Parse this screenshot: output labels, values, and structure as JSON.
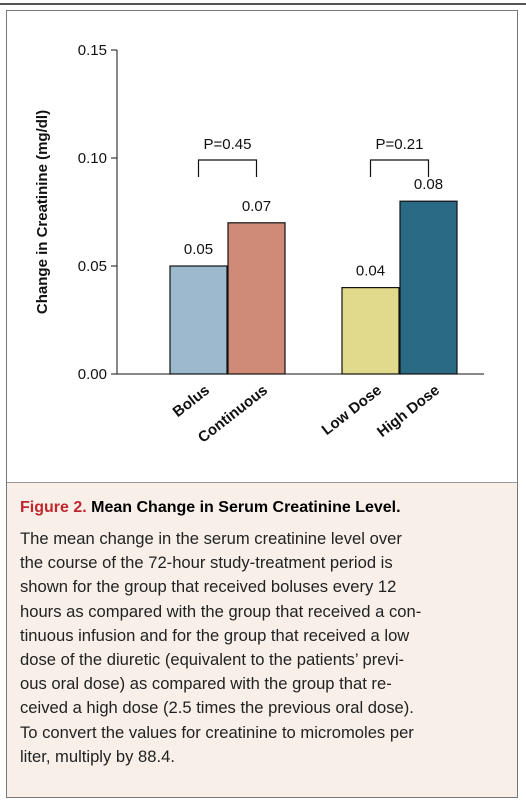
{
  "chart_data": {
    "type": "bar",
    "ylabel": "Change in Creatinine (mg/dl)",
    "categories": [
      "Bolus",
      "Continuous",
      "Low Dose",
      "High Dose"
    ],
    "values": [
      0.05,
      0.07,
      0.04,
      0.08
    ],
    "colors": [
      "#9cb9cd",
      "#cf8b78",
      "#e1d98c",
      "#2b6a85"
    ],
    "ylim": [
      0,
      0.15
    ],
    "yticks": [
      {
        "value": 0,
        "label": "0.00"
      },
      {
        "value": 0.05,
        "label": "0.05"
      },
      {
        "value": 0.1,
        "label": "0.10"
      },
      {
        "value": 0.15,
        "label": "0.15"
      }
    ],
    "annotations": [
      {
        "text": "P=0.45"
      },
      {
        "text": "P=0.21"
      }
    ]
  },
  "caption": {
    "label": "Figure 2.",
    "title": "Mean Change in Serum Creatinine Level.",
    "lines": [
      "The mean change in the serum creatinine level over",
      "the course of the 72-hour study-treatment period is",
      "shown for the group that received boluses every 12",
      "hours as compared with the group that received a con-",
      "tinuous infusion and for the group that received a low",
      "dose of the diuretic (equivalent to the patients’ previ-",
      "ous oral dose) as compared with the group that re-",
      "ceived a high dose (2.5 times the previous oral dose).",
      "To convert the values for creatinine to micromoles per",
      "liter, multiply by 88.4."
    ]
  }
}
